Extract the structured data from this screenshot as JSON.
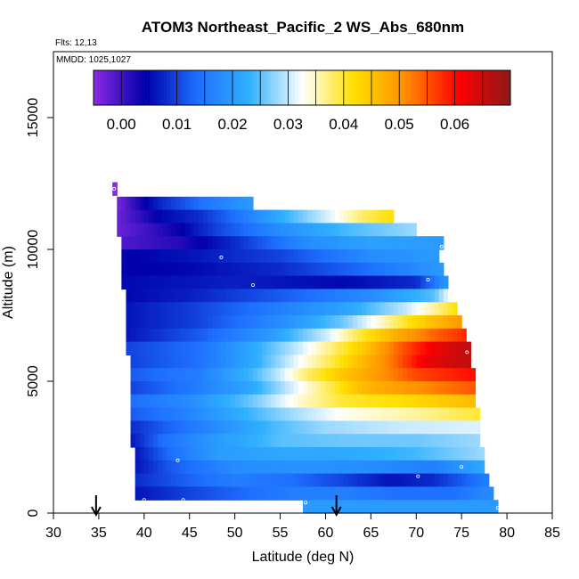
{
  "chart_data": {
    "type": "heatmap",
    "title": "ATOM3 Northeast_Pacific_2 WS_Abs_680nm",
    "flights_label": "Flts: 12,13",
    "dates_label": "MMDD: 1025,1027",
    "xlabel": "Latitude (deg N)",
    "ylabel": "Altitude (m)",
    "xlim": [
      30,
      85
    ],
    "ylim": [
      0,
      17500
    ],
    "x_ticks": [
      "30",
      "35",
      "40",
      "45",
      "50",
      "55",
      "60",
      "65",
      "70",
      "75",
      "80",
      "85"
    ],
    "y_ticks": [
      "0",
      "5000",
      "10000",
      "15000"
    ],
    "colorbar": {
      "min": -0.005,
      "max": 0.07,
      "ticks": [
        "0.00",
        "0.01",
        "0.02",
        "0.03",
        "0.04",
        "0.05",
        "0.06"
      ],
      "colors": [
        "#8a2be2",
        "#0000aa",
        "#1e6fff",
        "#30b0ff",
        "#ffffff",
        "#ffe000",
        "#ff8c00",
        "#ff0000",
        "#8b1a1a"
      ]
    },
    "cell_width_deg": 0.5,
    "bands": [
      {
        "alt": 12300,
        "lat0": 36.5,
        "lat1": 37.0,
        "knots": [
          [
            36.5,
            -0.005
          ]
        ]
      },
      {
        "alt": 11750,
        "lat0": 37.0,
        "lat1": 52.0,
        "knots": [
          [
            37.0,
            -0.004
          ],
          [
            40.0,
            0.004
          ],
          [
            42.0,
            0.008
          ],
          [
            47.0,
            0.015
          ],
          [
            52.0,
            0.02
          ]
        ]
      },
      {
        "alt": 11250,
        "lat0": 37.0,
        "lat1": 67.5,
        "knots": [
          [
            37.0,
            -0.003
          ],
          [
            42.0,
            0.005
          ],
          [
            46.0,
            0.008
          ],
          [
            50.0,
            0.014
          ],
          [
            56.0,
            0.024
          ],
          [
            61.0,
            0.032
          ],
          [
            64.0,
            0.038
          ],
          [
            67.5,
            0.042
          ]
        ]
      },
      {
        "alt": 10750,
        "lat0": 37.0,
        "lat1": 70.0,
        "knots": [
          [
            37.0,
            -0.003
          ],
          [
            44.0,
            0.004
          ],
          [
            48.0,
            0.01
          ],
          [
            55.0,
            0.018
          ],
          [
            62.0,
            0.024
          ],
          [
            70.0,
            0.028
          ]
        ]
      },
      {
        "alt": 10250,
        "lat0": 37.5,
        "lat1": 73.0,
        "knots": [
          [
            37.5,
            -0.001
          ],
          [
            44.0,
            0.002
          ],
          [
            50.0,
            0.008
          ],
          [
            58.0,
            0.018
          ],
          [
            65.0,
            0.021
          ],
          [
            73.0,
            0.02
          ]
        ]
      },
      {
        "alt": 9750,
        "lat0": 37.5,
        "lat1": 72.5,
        "knots": [
          [
            37.5,
            0.004
          ],
          [
            45.0,
            0.006
          ],
          [
            55.0,
            0.01
          ],
          [
            65.0,
            0.018
          ],
          [
            72.5,
            0.02
          ]
        ]
      },
      {
        "alt": 9250,
        "lat0": 37.5,
        "lat1": 73.0,
        "knots": [
          [
            37.5,
            0.004
          ],
          [
            45.0,
            0.005
          ],
          [
            55.0,
            0.008
          ],
          [
            65.0,
            0.014
          ],
          [
            73.0,
            0.02
          ]
        ]
      },
      {
        "alt": 8750,
        "lat0": 37.5,
        "lat1": 73.5,
        "knots": [
          [
            37.5,
            0.005
          ],
          [
            50.0,
            0.007
          ],
          [
            62.0,
            0.005
          ],
          [
            70.0,
            0.008
          ],
          [
            73.5,
            0.02
          ]
        ]
      },
      {
        "alt": 8250,
        "lat0": 38.0,
        "lat1": 74.0,
        "knots": [
          [
            38.0,
            0.005
          ],
          [
            45.0,
            0.007
          ],
          [
            55.0,
            0.012
          ],
          [
            65.0,
            0.018
          ],
          [
            72.0,
            0.025
          ],
          [
            74.0,
            0.034
          ]
        ]
      },
      {
        "alt": 7750,
        "lat0": 38.0,
        "lat1": 74.5,
        "knots": [
          [
            38.0,
            0.006
          ],
          [
            46.0,
            0.01
          ],
          [
            55.0,
            0.016
          ],
          [
            63.0,
            0.022
          ],
          [
            69.0,
            0.03
          ],
          [
            72.0,
            0.036
          ],
          [
            74.5,
            0.042
          ]
        ]
      },
      {
        "alt": 7250,
        "lat0": 38.0,
        "lat1": 75.0,
        "knots": [
          [
            38.0,
            0.006
          ],
          [
            46.0,
            0.01
          ],
          [
            55.0,
            0.018
          ],
          [
            62.0,
            0.026
          ],
          [
            66.0,
            0.034
          ],
          [
            70.0,
            0.043
          ],
          [
            75.0,
            0.05
          ]
        ]
      },
      {
        "alt": 6750,
        "lat0": 38.0,
        "lat1": 75.5,
        "knots": [
          [
            38.0,
            0.006
          ],
          [
            46.0,
            0.012
          ],
          [
            54.0,
            0.02
          ],
          [
            60.0,
            0.03
          ],
          [
            64.0,
            0.04
          ],
          [
            68.0,
            0.048
          ],
          [
            72.0,
            0.054
          ],
          [
            75.5,
            0.058
          ]
        ]
      },
      {
        "alt": 6250,
        "lat0": 38.0,
        "lat1": 76.0,
        "knots": [
          [
            38.0,
            0.01
          ],
          [
            46.0,
            0.014
          ],
          [
            52.0,
            0.022
          ],
          [
            57.0,
            0.03
          ],
          [
            61.0,
            0.038
          ],
          [
            65.0,
            0.046
          ],
          [
            68.0,
            0.054
          ],
          [
            72.0,
            0.062
          ],
          [
            76.0,
            0.066
          ]
        ]
      },
      {
        "alt": 5750,
        "lat0": 38.5,
        "lat1": 76.0,
        "knots": [
          [
            38.5,
            0.01
          ],
          [
            46.0,
            0.014
          ],
          [
            52.0,
            0.022
          ],
          [
            56.0,
            0.03
          ],
          [
            60.0,
            0.038
          ],
          [
            63.0,
            0.044
          ],
          [
            67.0,
            0.052
          ],
          [
            71.0,
            0.062
          ],
          [
            76.0,
            0.066
          ]
        ]
      },
      {
        "alt": 5250,
        "lat0": 38.5,
        "lat1": 76.5,
        "knots": [
          [
            38.5,
            0.012
          ],
          [
            46.0,
            0.016
          ],
          [
            52.0,
            0.024
          ],
          [
            55.0,
            0.03
          ],
          [
            58.0,
            0.038
          ],
          [
            62.0,
            0.045
          ],
          [
            66.0,
            0.05
          ],
          [
            70.0,
            0.056
          ],
          [
            76.5,
            0.06
          ]
        ]
      },
      {
        "alt": 4750,
        "lat0": 38.5,
        "lat1": 76.5,
        "knots": [
          [
            38.5,
            0.01
          ],
          [
            45.0,
            0.015
          ],
          [
            52.0,
            0.022
          ],
          [
            57.0,
            0.032
          ],
          [
            60.0,
            0.038
          ],
          [
            64.0,
            0.046
          ],
          [
            69.0,
            0.05
          ],
          [
            76.5,
            0.055
          ]
        ]
      },
      {
        "alt": 4250,
        "lat0": 38.5,
        "lat1": 76.5,
        "knots": [
          [
            38.5,
            0.014
          ],
          [
            45.0,
            0.018
          ],
          [
            52.0,
            0.026
          ],
          [
            57.0,
            0.034
          ],
          [
            62.0,
            0.04
          ],
          [
            68.0,
            0.042
          ],
          [
            76.5,
            0.046
          ]
        ]
      },
      {
        "alt": 3750,
        "lat0": 38.5,
        "lat1": 77.0,
        "knots": [
          [
            38.5,
            0.012
          ],
          [
            44.0,
            0.016
          ],
          [
            50.0,
            0.022
          ],
          [
            56.0,
            0.028
          ],
          [
            62.0,
            0.033
          ],
          [
            70.0,
            0.036
          ],
          [
            77.0,
            0.04
          ]
        ]
      },
      {
        "alt": 3250,
        "lat0": 38.5,
        "lat1": 77.0,
        "knots": [
          [
            38.5,
            0.008
          ],
          [
            42.0,
            0.012
          ],
          [
            48.0,
            0.018
          ],
          [
            54.0,
            0.024
          ],
          [
            60.0,
            0.028
          ],
          [
            68.0,
            0.03
          ],
          [
            77.0,
            0.031
          ]
        ]
      },
      {
        "alt": 2750,
        "lat0": 38.5,
        "lat1": 77.0,
        "knots": [
          [
            38.5,
            0.006
          ],
          [
            42.0,
            0.014
          ],
          [
            48.0,
            0.02
          ],
          [
            55.0,
            0.025
          ],
          [
            62.0,
            0.026
          ],
          [
            70.0,
            0.026
          ],
          [
            77.0,
            0.028
          ]
        ]
      },
      {
        "alt": 2250,
        "lat0": 39.0,
        "lat1": 77.5,
        "knots": [
          [
            39.0,
            0.006
          ],
          [
            43.0,
            0.014
          ],
          [
            48.0,
            0.02
          ],
          [
            55.0,
            0.022
          ],
          [
            62.0,
            0.022
          ],
          [
            70.0,
            0.024
          ],
          [
            77.5,
            0.028
          ]
        ]
      },
      {
        "alt": 1750,
        "lat0": 39.0,
        "lat1": 77.5,
        "knots": [
          [
            39.0,
            0.006
          ],
          [
            43.0,
            0.012
          ],
          [
            50.0,
            0.018
          ],
          [
            58.0,
            0.019
          ],
          [
            65.0,
            0.018
          ],
          [
            72.0,
            0.016
          ],
          [
            77.5,
            0.022
          ]
        ]
      },
      {
        "alt": 1250,
        "lat0": 39.0,
        "lat1": 78.0,
        "knots": [
          [
            39.0,
            0.008
          ],
          [
            44.0,
            0.012
          ],
          [
            50.0,
            0.016
          ],
          [
            56.0,
            0.014
          ],
          [
            62.0,
            0.01
          ],
          [
            67.0,
            0.006
          ],
          [
            72.0,
            0.008
          ],
          [
            78.0,
            0.016
          ]
        ]
      },
      {
        "alt": 750,
        "lat0": 39.0,
        "lat1": 78.5,
        "knots": [
          [
            39.0,
            0.006
          ],
          [
            45.0,
            0.01
          ],
          [
            52.0,
            0.014
          ],
          [
            57.0,
            0.016
          ],
          [
            62.0,
            0.016
          ],
          [
            68.0,
            0.014
          ],
          [
            74.0,
            0.014
          ],
          [
            78.5,
            0.018
          ]
        ]
      },
      {
        "alt": 250,
        "lat0": 57.5,
        "lat1": 79.0,
        "knots": [
          [
            57.5,
            0.02
          ],
          [
            79.0,
            0.02
          ]
        ]
      }
    ],
    "markers": [
      {
        "lat": 36.7,
        "alt": 12300
      },
      {
        "lat": 48.5,
        "alt": 9700
      },
      {
        "lat": 52.0,
        "alt": 8650
      },
      {
        "lat": 72.8,
        "alt": 10100
      },
      {
        "lat": 71.3,
        "alt": 8850
      },
      {
        "lat": 75.6,
        "alt": 6100
      },
      {
        "lat": 43.7,
        "alt": 2000
      },
      {
        "lat": 70.2,
        "alt": 1400
      },
      {
        "lat": 75.0,
        "alt": 1750
      },
      {
        "lat": 40.0,
        "alt": 500
      },
      {
        "lat": 44.3,
        "alt": 500
      },
      {
        "lat": 57.8,
        "alt": 400
      },
      {
        "lat": 79.0,
        "alt": 200
      }
    ],
    "arrows": [
      {
        "lat": 34.7
      },
      {
        "lat": 61.2
      }
    ]
  }
}
